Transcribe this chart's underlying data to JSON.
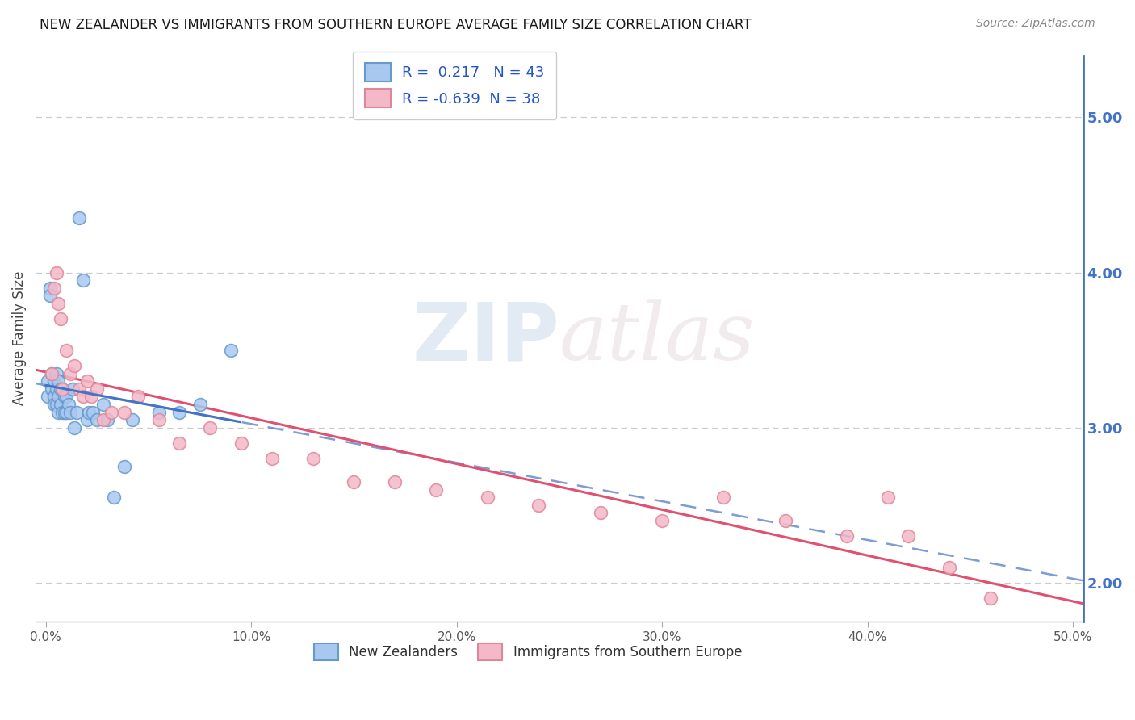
{
  "title": "NEW ZEALANDER VS IMMIGRANTS FROM SOUTHERN EUROPE AVERAGE FAMILY SIZE CORRELATION CHART",
  "source": "Source: ZipAtlas.com",
  "ylabel": "Average Family Size",
  "xlim": [
    -0.005,
    0.505
  ],
  "ylim": [
    1.75,
    5.4
  ],
  "yticks": [
    2.0,
    3.0,
    4.0,
    5.0
  ],
  "xticks": [
    0.0,
    0.1,
    0.2,
    0.3,
    0.4,
    0.5
  ],
  "xticklabels": [
    "0.0%",
    "10.0%",
    "20.0%",
    "30.0%",
    "40.0%",
    "50.0%"
  ],
  "series1_label": "New Zealanders",
  "series1_R": "0.217",
  "series1_N": "43",
  "series1_dot_color": "#a8c8f0",
  "series1_edge_color": "#6699cc",
  "series1_line_color": "#4472c4",
  "series2_label": "Immigrants from Southern Europe",
  "series2_R": "-0.639",
  "series2_N": "38",
  "series2_dot_color": "#f4b8c8",
  "series2_edge_color": "#dd8899",
  "series2_line_color": "#e05070",
  "watermark_zip": "ZIP",
  "watermark_atlas": "atlas",
  "background_color": "#ffffff",
  "grid_color": "#cccccc",
  "nz_x": [
    0.001,
    0.001,
    0.002,
    0.002,
    0.003,
    0.003,
    0.004,
    0.004,
    0.004,
    0.005,
    0.005,
    0.005,
    0.006,
    0.006,
    0.006,
    0.007,
    0.007,
    0.008,
    0.008,
    0.009,
    0.009,
    0.01,
    0.01,
    0.011,
    0.012,
    0.013,
    0.014,
    0.015,
    0.016,
    0.018,
    0.02,
    0.021,
    0.023,
    0.025,
    0.028,
    0.03,
    0.033,
    0.038,
    0.042,
    0.055,
    0.065,
    0.075,
    0.09
  ],
  "nz_y": [
    3.3,
    3.2,
    3.9,
    3.85,
    3.35,
    3.25,
    3.3,
    3.2,
    3.15,
    3.35,
    3.25,
    3.15,
    3.3,
    3.2,
    3.1,
    3.25,
    3.15,
    3.25,
    3.1,
    3.2,
    3.1,
    3.2,
    3.1,
    3.15,
    3.1,
    3.25,
    3.0,
    3.1,
    4.35,
    3.95,
    3.05,
    3.1,
    3.1,
    3.05,
    3.15,
    3.05,
    2.55,
    2.75,
    3.05,
    3.1,
    3.1,
    3.15,
    3.5
  ],
  "se_x": [
    0.003,
    0.004,
    0.005,
    0.006,
    0.007,
    0.008,
    0.01,
    0.012,
    0.014,
    0.016,
    0.018,
    0.02,
    0.022,
    0.025,
    0.028,
    0.032,
    0.038,
    0.045,
    0.055,
    0.065,
    0.08,
    0.095,
    0.11,
    0.13,
    0.15,
    0.17,
    0.19,
    0.215,
    0.24,
    0.27,
    0.3,
    0.33,
    0.36,
    0.39,
    0.41,
    0.42,
    0.44,
    0.46
  ],
  "se_y": [
    3.35,
    3.9,
    4.0,
    3.8,
    3.7,
    3.25,
    3.5,
    3.35,
    3.4,
    3.25,
    3.2,
    3.3,
    3.2,
    3.25,
    3.05,
    3.1,
    3.1,
    3.2,
    3.05,
    2.9,
    3.0,
    2.9,
    2.8,
    2.8,
    2.65,
    2.65,
    2.6,
    2.55,
    2.5,
    2.45,
    2.4,
    2.55,
    2.4,
    2.3,
    2.55,
    2.3,
    2.1,
    1.9
  ]
}
